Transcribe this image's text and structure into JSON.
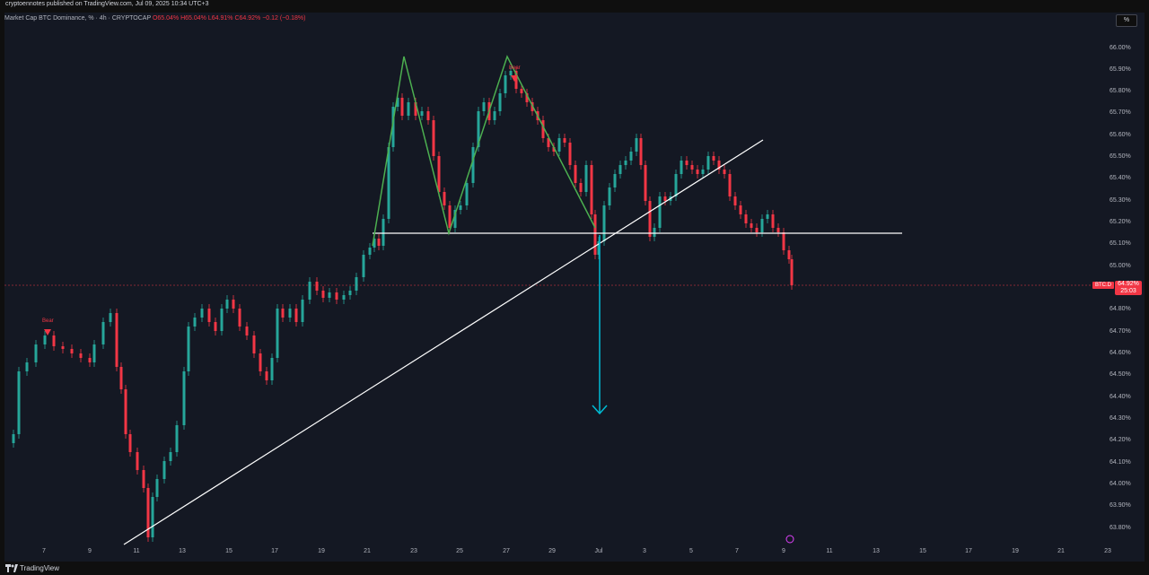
{
  "header": {
    "published": "cryptoennotes published on TradingView.com, Jul 09, 2025 10:34 UTC+3"
  },
  "legend": {
    "symbol": "Market Cap BTC Dominance, %  · 4h · CRYPTOCAP",
    "open": "O65.04%",
    "high": "H65.04%",
    "low": "L64.91%",
    "close": "C64.92%",
    "change": "−0.12 (−0.18%)"
  },
  "scale_button": "%",
  "price_axis": [
    "66.00%",
    "65.90%",
    "65.80%",
    "65.70%",
    "65.60%",
    "65.50%",
    "65.40%",
    "65.30%",
    "65.20%",
    "65.10%",
    "65.00%",
    "64.80%",
    "64.70%",
    "64.60%",
    "64.50%",
    "64.40%",
    "64.30%",
    "64.20%",
    "64.10%",
    "64.00%",
    "63.90%",
    "63.80%"
  ],
  "time_axis": [
    "7",
    "9",
    "11",
    "13",
    "15",
    "17",
    "19",
    "21",
    "23",
    "25",
    "27",
    "29",
    "Jul",
    "3",
    "5",
    "7",
    "9",
    "11",
    "13",
    "15",
    "17",
    "19",
    "21",
    "23"
  ],
  "last_price": {
    "symbol": "BTC.D",
    "value": "64.92%",
    "countdown": "25:03"
  },
  "annotations": {
    "bear1": "Bear",
    "bear2": "Bear"
  },
  "footer": {
    "brand": "TradingView"
  },
  "colors": {
    "up": "#26a69a",
    "down": "#f23645",
    "pattern": "#4caf50",
    "arrow": "#00bcd4",
    "lines": "#ffffff"
  },
  "chart_data": {
    "type": "candlestick",
    "timeframe": "4h",
    "last": 64.92,
    "ylim": [
      63.78,
      66.05
    ],
    "neckline": 65.16,
    "pattern": "double top",
    "pattern_target": 64.33
  }
}
